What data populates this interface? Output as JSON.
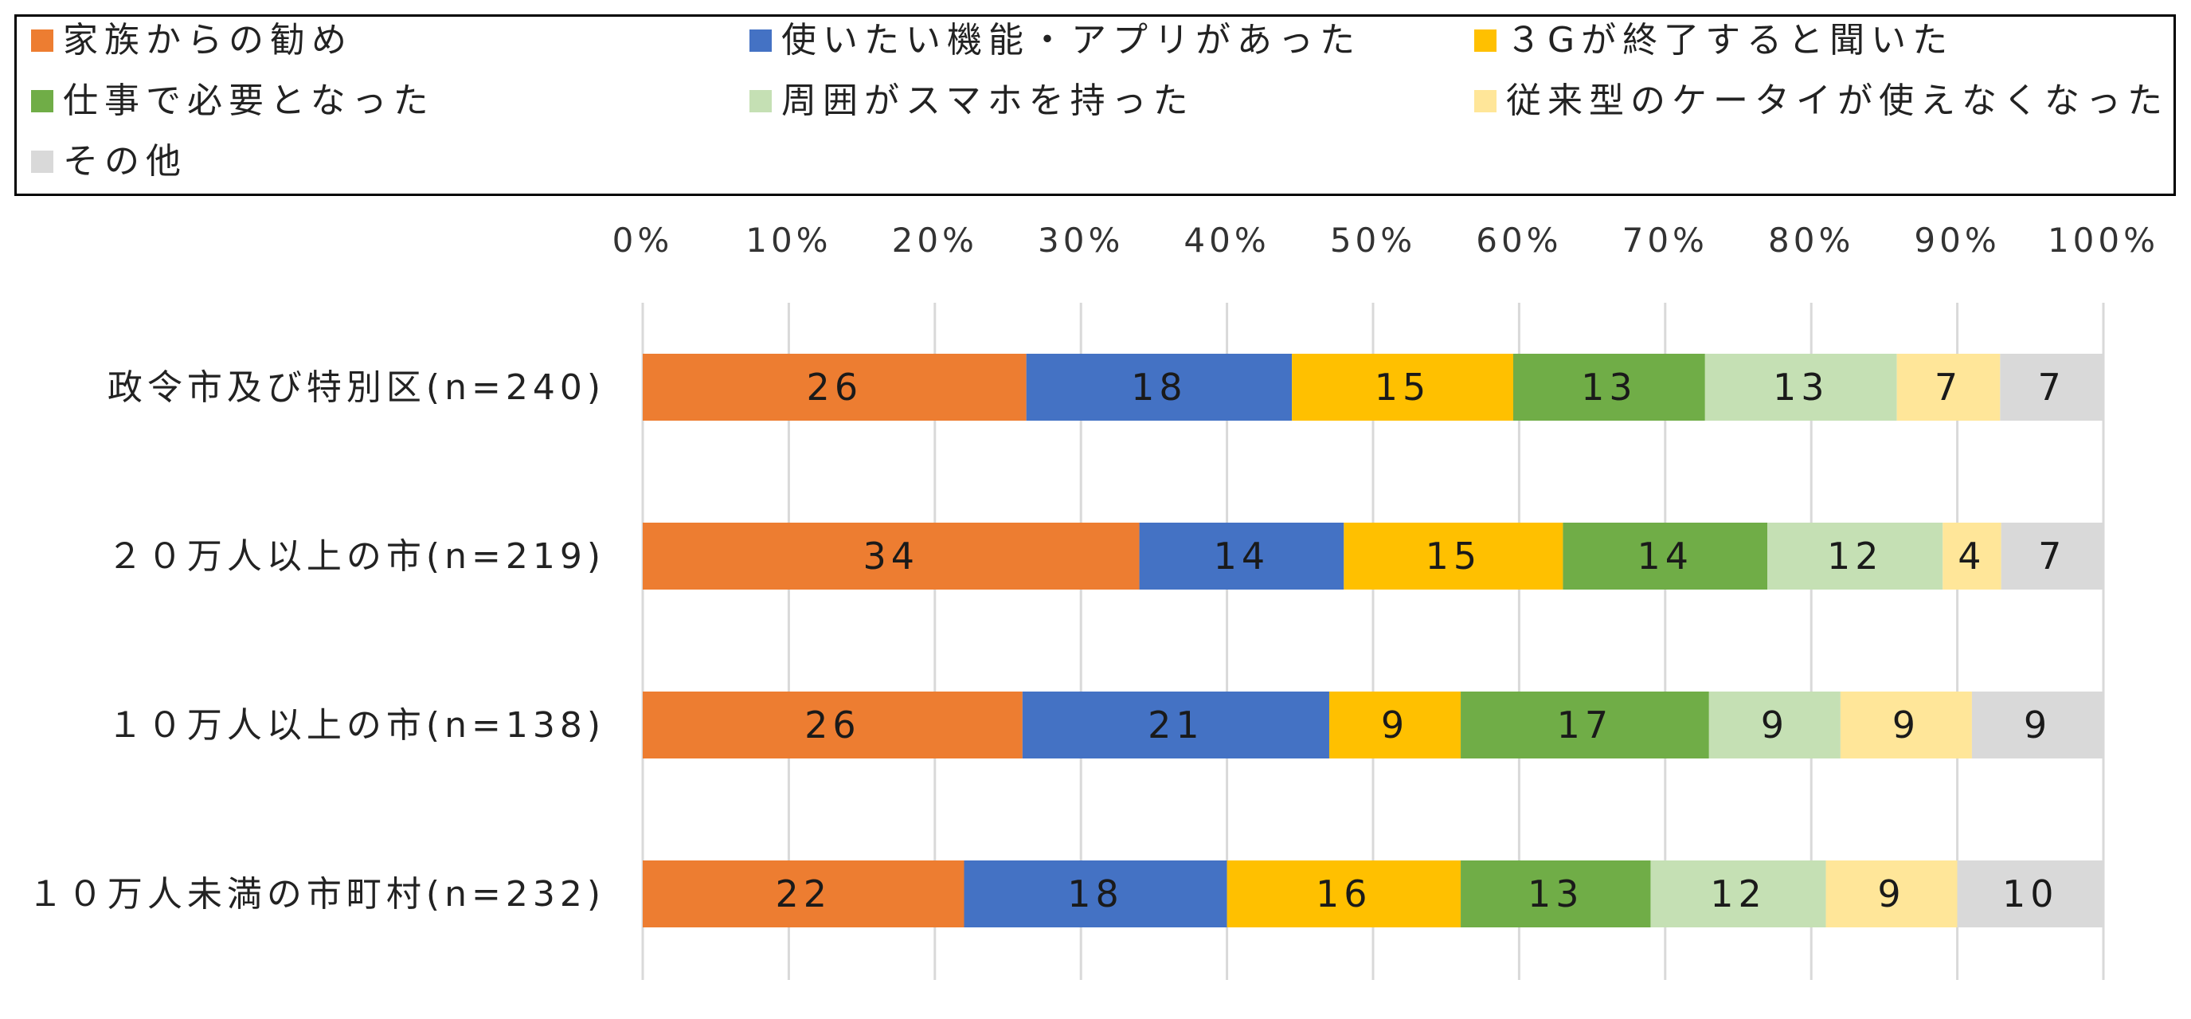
{
  "colors": [
    "#ED7D31",
    "#4472C4",
    "#FFC000",
    "#70AD47",
    "#C5E0B4",
    "#FFE699",
    "#D9D9D9"
  ],
  "chart_data": {
    "type": "bar",
    "orientation": "horizontal",
    "stacked": "percent",
    "categories": [
      "政令市及び特別区(n=240)",
      "２０万人以上の市(n=219)",
      "１０万人以上の市(n=138)",
      "１０万人未満の市町村(n=232)"
    ],
    "series": [
      {
        "name": "家族からの勧め",
        "values": [
          26,
          34,
          26,
          22
        ]
      },
      {
        "name": "使いたい機能・アプリがあった",
        "values": [
          18,
          14,
          21,
          18
        ]
      },
      {
        "name": "３Gが終了すると聞いた",
        "values": [
          15,
          15,
          9,
          16
        ]
      },
      {
        "name": "仕事で必要となった",
        "values": [
          13,
          14,
          17,
          13
        ]
      },
      {
        "name": "周囲がスマホを持った",
        "values": [
          13,
          12,
          9,
          12
        ]
      },
      {
        "name": "従来型のケータイが使えなくなった",
        "values": [
          7,
          4,
          9,
          9
        ]
      },
      {
        "name": "その他",
        "values": [
          7,
          7,
          9,
          10
        ]
      }
    ],
    "xlim": [
      0,
      100
    ],
    "x_ticks": [
      "0%",
      "10%",
      "20%",
      "30%",
      "40%",
      "50%",
      "60%",
      "70%",
      "80%",
      "90%",
      "100%"
    ],
    "x_axis_position": "top",
    "grid": true,
    "legend_position": "top",
    "data_labels": true
  }
}
